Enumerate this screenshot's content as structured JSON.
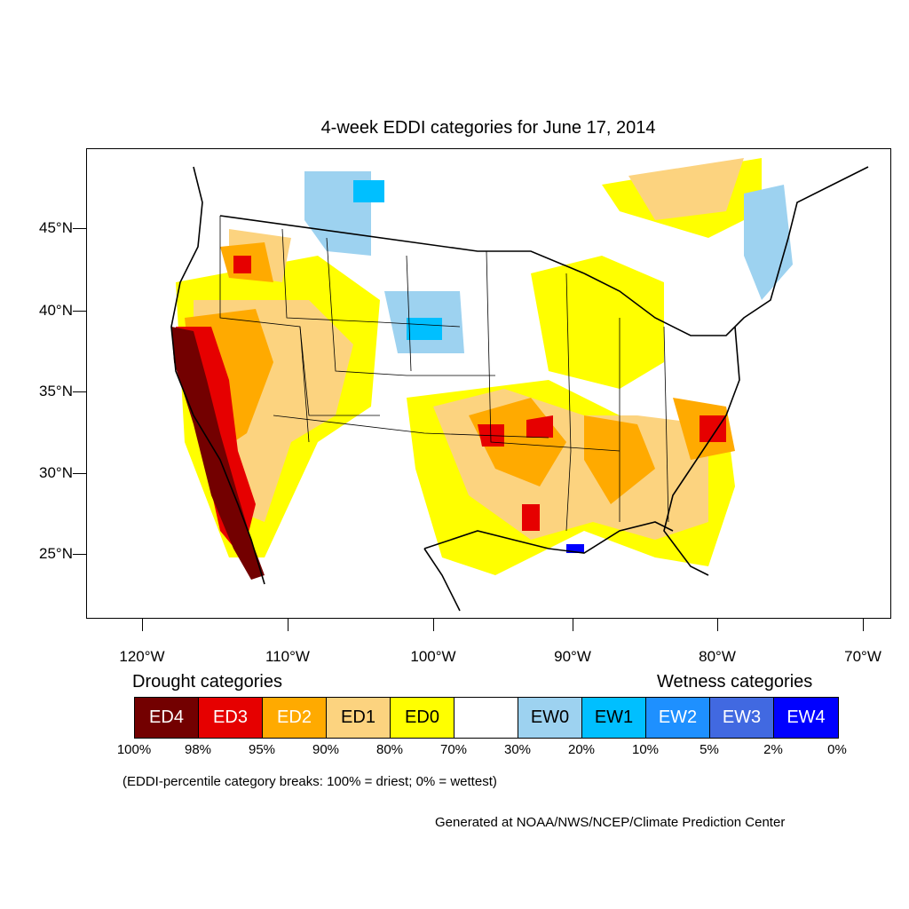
{
  "title": "4-week EDDI categories for June 17, 2014",
  "lat_labels": [
    "45°N",
    "40°N",
    "35°N",
    "30°N",
    "25°N"
  ],
  "lon_labels": [
    "120°W",
    "110°W",
    "100°W",
    "90°W",
    "80°W",
    "70°W"
  ],
  "legend": {
    "drought_title": "Drought categories",
    "wetness_title": "Wetness categories",
    "categories": [
      {
        "label": "ED4",
        "color": "#730000",
        "text_color": "#ffffff"
      },
      {
        "label": "ED3",
        "color": "#e60000",
        "text_color": "#ffffff"
      },
      {
        "label": "ED2",
        "color": "#ffaa00",
        "text_color": "#ffffff"
      },
      {
        "label": "ED1",
        "color": "#fcd37f",
        "text_color": "#000000"
      },
      {
        "label": "ED0",
        "color": "#ffff00",
        "text_color": "#000000"
      },
      {
        "label": "",
        "color": "#ffffff",
        "text_color": "#000000"
      },
      {
        "label": "EW0",
        "color": "#9dd2f0",
        "text_color": "#000000"
      },
      {
        "label": "EW1",
        "color": "#00bfff",
        "text_color": "#000000"
      },
      {
        "label": "EW2",
        "color": "#1e90ff",
        "text_color": "#ffffff"
      },
      {
        "label": "EW3",
        "color": "#4169e1",
        "text_color": "#ffffff"
      },
      {
        "label": "EW4",
        "color": "#0000ff",
        "text_color": "#ffffff"
      }
    ],
    "breaks": [
      "100%",
      "98%",
      "95%",
      "90%",
      "80%",
      "70%",
      "30%",
      "20%",
      "10%",
      "5%",
      "2%",
      "0%"
    ]
  },
  "note": "(EDDI-percentile category breaks: 100% = driest; 0% = wettest)",
  "credit": "Generated at NOAA/NWS/NCEP/Climate Prediction Center"
}
